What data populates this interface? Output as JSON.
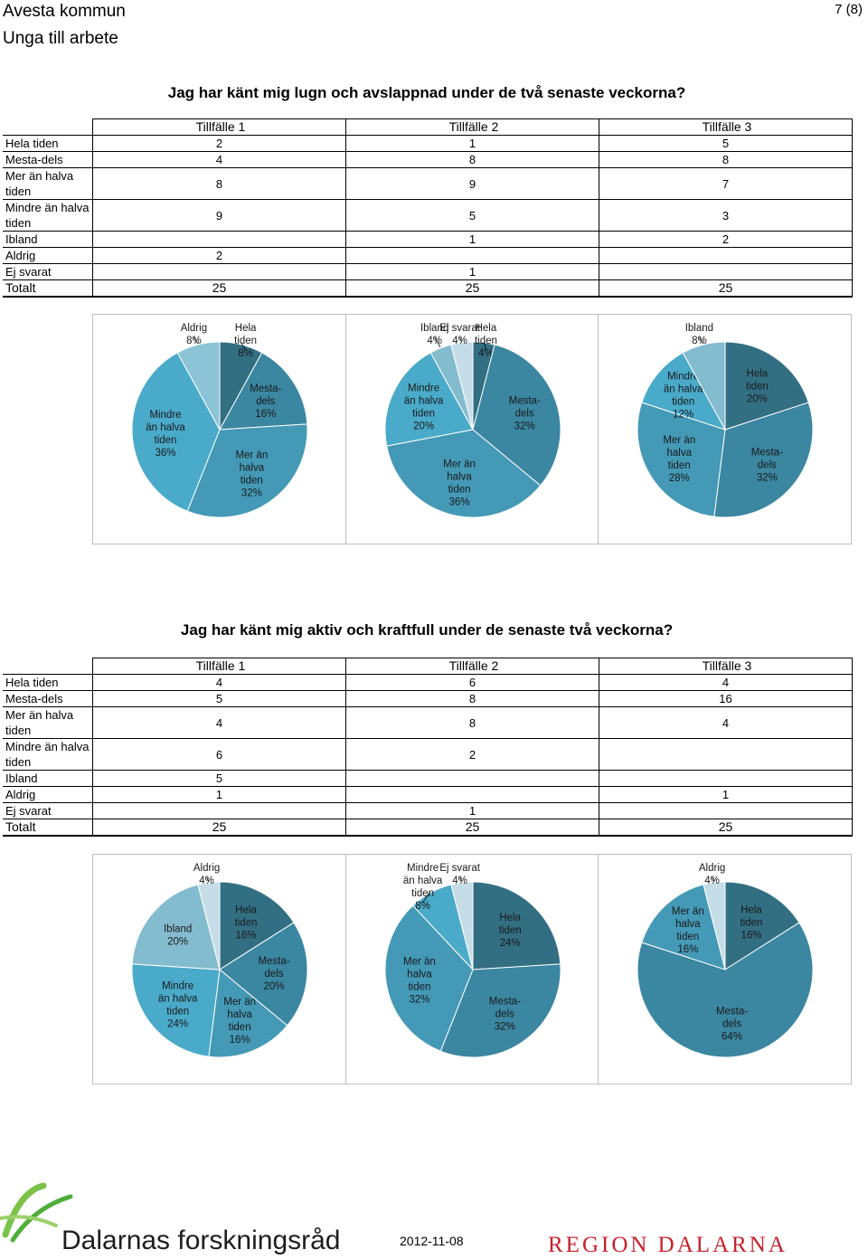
{
  "header": {
    "org": "Avesta kommun",
    "project": "Unga till arbete",
    "page": "7 (8)"
  },
  "footer": {
    "logo_left": "Dalarnas forskningsråd",
    "date": "2012-11-08",
    "logo_right": "REGION DALARNA"
  },
  "questions": [
    {
      "title": "Jag har känt mig lugn och avslappnad under de två senaste veckorna?",
      "columns": [
        "Tillfälle 1",
        "Tillfälle 2",
        "Tillfälle 3"
      ],
      "rows": [
        {
          "label": "Hela tiden",
          "values": [
            "2",
            "1",
            "5"
          ]
        },
        {
          "label": "Mesta-dels",
          "values": [
            "4",
            "8",
            "8"
          ]
        },
        {
          "label": "Mer än halva tiden",
          "values": [
            "8",
            "9",
            "7"
          ]
        },
        {
          "label": "Mindre än halva tiden",
          "values": [
            "9",
            "5",
            "3"
          ]
        },
        {
          "label": "Ibland",
          "values": [
            "",
            "1",
            "2"
          ]
        },
        {
          "label": "Aldrig",
          "values": [
            "2",
            "",
            ""
          ]
        },
        {
          "label": "Ej svarat",
          "values": [
            "",
            "1",
            ""
          ]
        }
      ],
      "total": {
        "label": "Totalt",
        "values": [
          "25",
          "25",
          "25"
        ]
      }
    },
    {
      "title": "Jag har känt mig aktiv och kraftfull under de senaste två veckorna?",
      "columns": [
        "Tillfälle 1",
        "Tillfälle 2",
        "Tillfälle 3"
      ],
      "rows": [
        {
          "label": "Hela tiden",
          "values": [
            "4",
            "6",
            "4"
          ]
        },
        {
          "label": "Mesta-dels",
          "values": [
            "5",
            "8",
            "16"
          ]
        },
        {
          "label": "Mer än halva tiden",
          "values": [
            "4",
            "8",
            "4"
          ]
        },
        {
          "label": "Mindre än halva tiden",
          "values": [
            "6",
            "2",
            ""
          ]
        },
        {
          "label": "Ibland",
          "values": [
            "5",
            "",
            ""
          ]
        },
        {
          "label": "Aldrig",
          "values": [
            "1",
            "",
            "1"
          ]
        },
        {
          "label": "Ej svarat",
          "values": [
            "",
            "1",
            ""
          ]
        }
      ],
      "total": {
        "label": "Totalt",
        "values": [
          "25",
          "25",
          "25"
        ]
      }
    }
  ],
  "chart_data": [
    {
      "type": "pie",
      "question": 1,
      "occasion": "Tillfälle 1",
      "slices": [
        {
          "label": "Hela tiden",
          "value": 8,
          "text": "Hela\ntiden\n8%",
          "color": "#336f83"
        },
        {
          "label": "Mesta-dels",
          "value": 16,
          "text": "Mesta-\ndels\n16%",
          "color": "#3b86a0"
        },
        {
          "label": "Mer än halva tiden",
          "value": 32,
          "text": "Mer än\nhalva\ntiden\n32%",
          "color": "#4499b6"
        },
        {
          "label": "Mindre än halva tiden",
          "value": 36,
          "text": "Mindre\nän halva\ntiden\n36%",
          "color": "#4aaac9"
        },
        {
          "label": "Aldrig",
          "value": 8,
          "text": "Aldrig\n8%",
          "color": "#8cc3d6"
        }
      ]
    },
    {
      "type": "pie",
      "question": 1,
      "occasion": "Tillfälle 2",
      "slices": [
        {
          "label": "Hela tiden",
          "value": 4,
          "text": "Hela\ntiden\n4%",
          "color": "#336f83"
        },
        {
          "label": "Mesta-dels",
          "value": 32,
          "text": "Mesta-\ndels\n32%",
          "color": "#3b86a0"
        },
        {
          "label": "Mer än halva tiden",
          "value": 36,
          "text": "Mer än\nhalva\ntiden\n36%",
          "color": "#4499b6"
        },
        {
          "label": "Mindre än halva tiden",
          "value": 20,
          "text": "Mindre\nän halva\ntiden\n20%",
          "color": "#4aaac9"
        },
        {
          "label": "Ibland",
          "value": 4,
          "text": "Ibland\n4%",
          "color": "#84bccf"
        },
        {
          "label": "Ej svarat",
          "value": 4,
          "text": "Ej svarat\n4%",
          "color": "#c5dde6"
        }
      ]
    },
    {
      "type": "pie",
      "question": 1,
      "occasion": "Tillfälle 3",
      "slices": [
        {
          "label": "Hela tiden",
          "value": 20,
          "text": "Hela\ntiden\n20%",
          "color": "#336f83"
        },
        {
          "label": "Mesta-dels",
          "value": 32,
          "text": "Mesta-\ndels\n32%",
          "color": "#3b86a0"
        },
        {
          "label": "Mer än halva tiden",
          "value": 28,
          "text": "Mer än\nhalva\ntiden\n28%",
          "color": "#4499b6"
        },
        {
          "label": "Mindre än halva tiden",
          "value": 12,
          "text": "Mindre\nän halva\ntiden\n12%",
          "color": "#4aaac9"
        },
        {
          "label": "Ibland",
          "value": 8,
          "text": "Ibland\n8%",
          "color": "#84bccf"
        }
      ]
    },
    {
      "type": "pie",
      "question": 2,
      "occasion": "Tillfälle 1",
      "slices": [
        {
          "label": "Hela tiden",
          "value": 16,
          "text": "Hela\ntiden\n16%",
          "color": "#336f83"
        },
        {
          "label": "Mesta-dels",
          "value": 20,
          "text": "Mesta-\ndels\n20%",
          "color": "#3b86a0"
        },
        {
          "label": "Mer än halva tiden",
          "value": 16,
          "text": "Mer än\nhalva\ntiden\n16%",
          "color": "#4499b6"
        },
        {
          "label": "Mindre än halva tiden",
          "value": 24,
          "text": "Mindre\nän halva\ntiden\n24%",
          "color": "#4aaac9"
        },
        {
          "label": "Ibland",
          "value": 20,
          "text": "Ibland\n20%",
          "color": "#84bccf"
        },
        {
          "label": "Aldrig",
          "value": 4,
          "text": "Aldrig\n4%",
          "color": "#c5dde6"
        }
      ]
    },
    {
      "type": "pie",
      "question": 2,
      "occasion": "Tillfälle 2",
      "slices": [
        {
          "label": "Hela tiden",
          "value": 24,
          "text": "Hela\ntiden\n24%",
          "color": "#336f83"
        },
        {
          "label": "Mesta-dels",
          "value": 32,
          "text": "Mesta-\ndels\n32%",
          "color": "#3b86a0"
        },
        {
          "label": "Mer än halva tiden",
          "value": 32,
          "text": "Mer än\nhalva\ntiden\n32%",
          "color": "#4499b6"
        },
        {
          "label": "Mindre än halva tiden",
          "value": 8,
          "text": "Mindre\nän halva\ntiden\n8%",
          "color": "#4aaac9"
        },
        {
          "label": "Ej svarat",
          "value": 4,
          "text": "Ej svarat\n4%",
          "color": "#c5dde6"
        }
      ]
    },
    {
      "type": "pie",
      "question": 2,
      "occasion": "Tillfälle 3",
      "slices": [
        {
          "label": "Hela tiden",
          "value": 16,
          "text": "Hela\ntiden\n16%",
          "color": "#336f83"
        },
        {
          "label": "Mesta-dels",
          "value": 64,
          "text": "Mesta-\ndels\n64%",
          "color": "#3b86a0"
        },
        {
          "label": "Mer än halva tiden",
          "value": 16,
          "text": "Mer än\nhalva\ntiden\n16%",
          "color": "#4499b6"
        },
        {
          "label": "Aldrig",
          "value": 4,
          "text": "Aldrig\n4%",
          "color": "#c5dde6"
        }
      ]
    }
  ]
}
